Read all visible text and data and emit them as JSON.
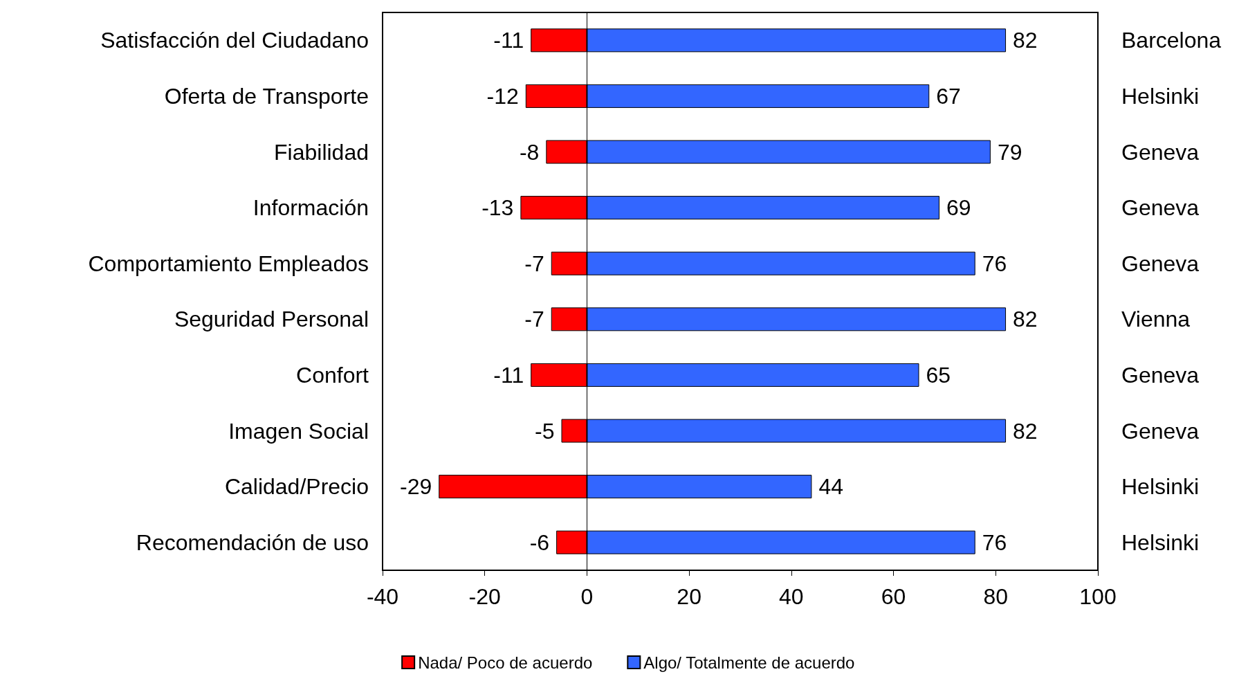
{
  "chart_data": {
    "type": "bar",
    "orientation": "horizontal",
    "stacked": true,
    "categories": [
      "Satisfacción del Ciudadano",
      "Oferta de Transporte",
      "Fiabilidad",
      "Información",
      "Comportamiento Empleados",
      "Seguridad Personal",
      "Confort",
      "Imagen Social",
      "Calidad/Precio",
      "Recomendación de uso"
    ],
    "y2_categories": [
      "Barcelona",
      "Helsinki",
      "Geneva",
      "Geneva",
      "Geneva",
      "Vienna",
      "Geneva",
      "Geneva",
      "Helsinki",
      "Helsinki"
    ],
    "series": [
      {
        "name": "Nada/ Poco de acuerdo",
        "color": "#ff0000",
        "values": [
          -11,
          -12,
          -8,
          -13,
          -7,
          -7,
          -11,
          -5,
          -29,
          -6
        ]
      },
      {
        "name": "Algo/ Totalmente de acuerdo",
        "color": "#3366ff",
        "values": [
          82,
          67,
          79,
          69,
          76,
          82,
          65,
          82,
          44,
          76
        ]
      }
    ],
    "xlim": [
      -40,
      100
    ],
    "xticks": [
      -40,
      -20,
      0,
      20,
      40,
      60,
      80,
      100
    ],
    "ref_lines": [
      {
        "axis": "x",
        "value": 0,
        "color": "#000000"
      }
    ],
    "data_labels": true,
    "grid": false,
    "legend": "bottom"
  }
}
